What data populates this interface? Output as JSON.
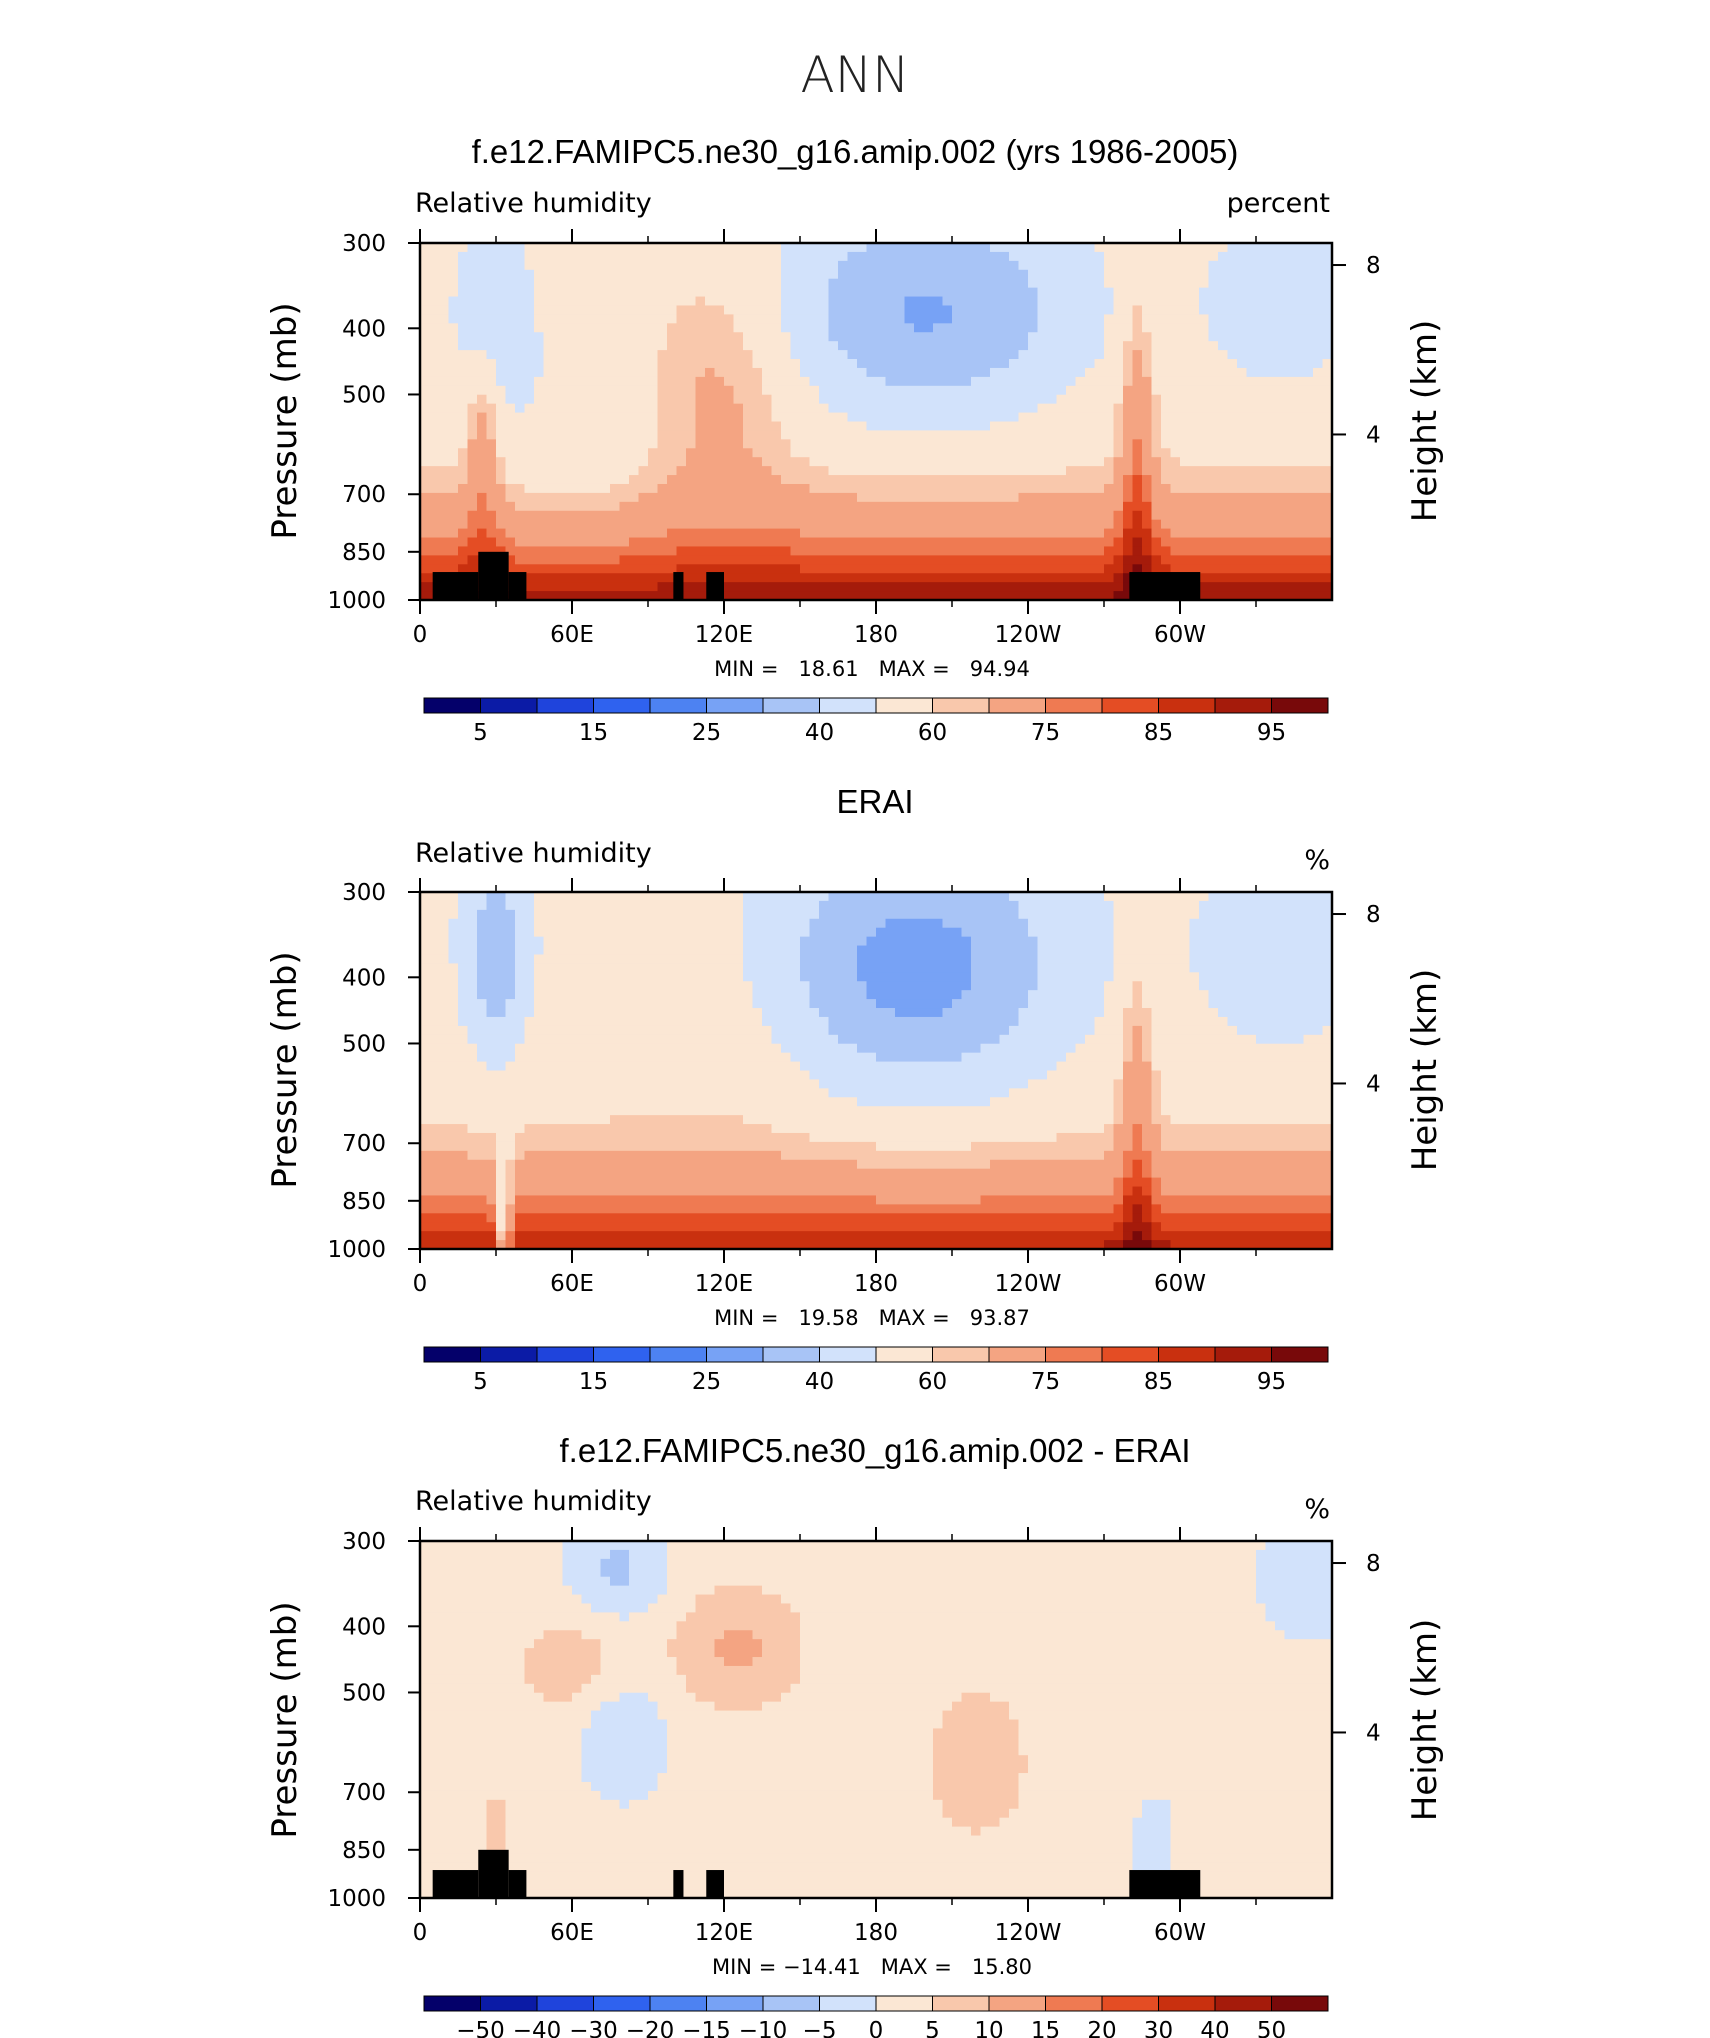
{
  "figure_title": "ANN",
  "chart_data": [
    {
      "type": "heatmap",
      "title": "f.e12.FAMIPC5.ne30_g16.amip.002 (yrs 1986-2005)",
      "left_label": "Relative  humidity",
      "right_label": "percent",
      "ylabel": "Pressure  (mb)",
      "ylabel_right": "Height  (km)",
      "x_ticks": [
        "0",
        "60E",
        "120E",
        "180",
        "120W",
        "60W"
      ],
      "y_ticks": [
        "300",
        "400",
        "500",
        "700",
        "850",
        "1000"
      ],
      "y_ticks_right": [
        "8",
        "4"
      ],
      "stats_text": "MIN =   18.61   MAX =   94.94",
      "min": 18.61,
      "max": 94.94,
      "colorbar_levels": [
        5,
        10,
        15,
        20,
        25,
        30,
        40,
        50,
        60,
        65,
        75,
        80,
        85,
        90,
        95
      ],
      "colorbar_labels": [
        "5",
        "15",
        "25",
        "40",
        "60",
        "75",
        "85",
        "95"
      ],
      "colors": [
        "#04006a",
        "#0b1ba6",
        "#1f44dc",
        "#2f62ef",
        "#4d82f2",
        "#77a2f5",
        "#a8c4f6",
        "#d2e2fb",
        "#fbe7d4",
        "#f9c8ac",
        "#f4a482",
        "#ef7a52",
        "#e44d24",
        "#c9300f",
        "#a51b0b",
        "#78090a"
      ],
      "mask": "terrain"
    },
    {
      "type": "heatmap",
      "title": "ERAI",
      "left_label": "Relative  humidity",
      "right_label": "%",
      "ylabel": "Pressure  (mb)",
      "ylabel_right": "Height  (km)",
      "x_ticks": [
        "0",
        "60E",
        "120E",
        "180",
        "120W",
        "60W"
      ],
      "y_ticks": [
        "300",
        "400",
        "500",
        "700",
        "850",
        "1000"
      ],
      "y_ticks_right": [
        "8",
        "4"
      ],
      "stats_text": "MIN =   19.58   MAX =   93.87",
      "min": 19.58,
      "max": 93.87,
      "colorbar_levels": [
        5,
        10,
        15,
        20,
        25,
        30,
        40,
        50,
        60,
        65,
        75,
        80,
        85,
        90,
        95
      ],
      "colorbar_labels": [
        "5",
        "15",
        "25",
        "40",
        "60",
        "75",
        "85",
        "95"
      ],
      "colors": [
        "#04006a",
        "#0b1ba6",
        "#1f44dc",
        "#2f62ef",
        "#4d82f2",
        "#77a2f5",
        "#a8c4f6",
        "#d2e2fb",
        "#fbe7d4",
        "#f9c8ac",
        "#f4a482",
        "#ef7a52",
        "#e44d24",
        "#c9300f",
        "#a51b0b",
        "#78090a"
      ],
      "mask": "none"
    },
    {
      "type": "heatmap",
      "title": "f.e12.FAMIPC5.ne30_g16.amip.002 - ERAI",
      "left_label": "Relative  humidity",
      "right_label": "%",
      "ylabel": "Pressure  (mb)",
      "ylabel_right": "Height  (km)",
      "x_ticks": [
        "0",
        "60E",
        "120E",
        "180",
        "120W",
        "60W"
      ],
      "y_ticks": [
        "300",
        "400",
        "500",
        "700",
        "850",
        "1000"
      ],
      "y_ticks_right": [
        "8",
        "4"
      ],
      "stats_text": "MIN = −14.41   MAX =   15.80",
      "min": -14.41,
      "max": 15.8,
      "colorbar_levels": [
        -50,
        -40,
        -30,
        -20,
        -15,
        -10,
        -5,
        0,
        5,
        10,
        15,
        20,
        30,
        40,
        50
      ],
      "colorbar_labels": [
        "−50",
        "−40",
        "−30",
        "−20",
        "−15",
        "−10",
        "−5",
        "0",
        "5",
        "10",
        "15",
        "20",
        "30",
        "40",
        "50"
      ],
      "colors": [
        "#04006a",
        "#0b1ba6",
        "#1f44dc",
        "#2f62ef",
        "#4d82f2",
        "#77a2f5",
        "#a8c4f6",
        "#d2e2fb",
        "#fbe7d4",
        "#f9c8ac",
        "#f4a482",
        "#ef7a52",
        "#e44d24",
        "#c9300f",
        "#a51b0b",
        "#78090a"
      ],
      "mask": "terrain"
    }
  ]
}
